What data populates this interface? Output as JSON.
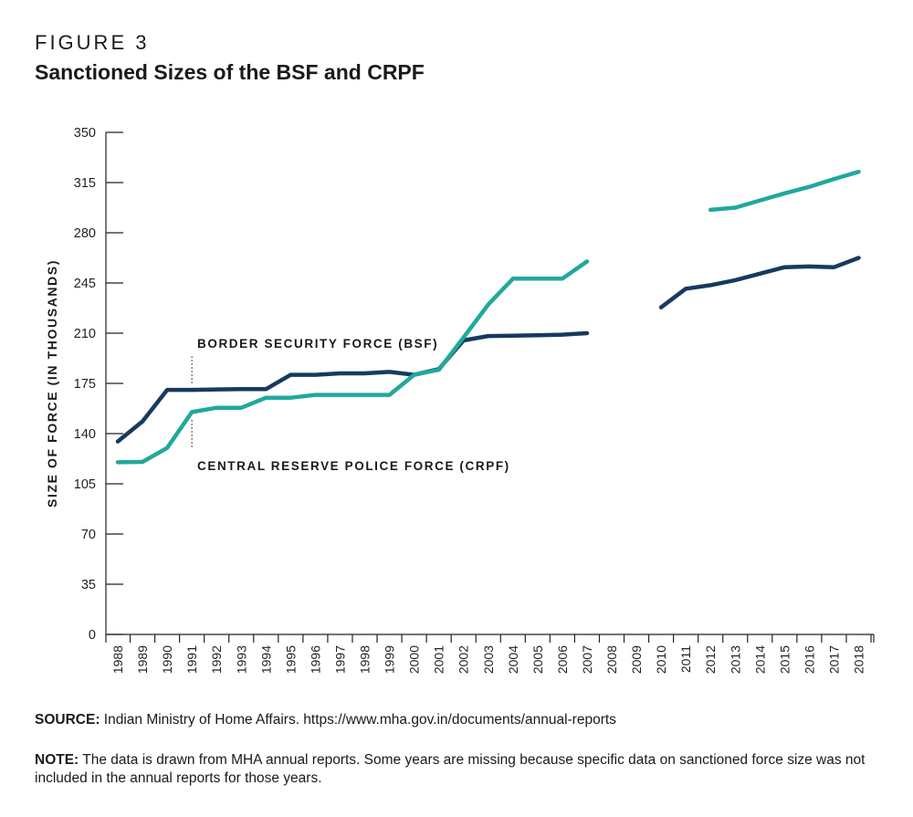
{
  "figure": {
    "label": "FIGURE 3",
    "title": "Sanctioned Sizes of the BSF and CRPF"
  },
  "chart_data": {
    "type": "line",
    "title": "Sanctioned Sizes of the BSF and CRPF",
    "xlabel": "",
    "ylabel": "SIZE OF FORCE (IN THOUSANDS)",
    "ylim": [
      0,
      350
    ],
    "yticks": [
      0,
      35,
      70,
      105,
      140,
      175,
      210,
      245,
      280,
      315,
      350
    ],
    "categories": [
      "1988",
      "1989",
      "1990",
      "1991",
      "1992",
      "1993",
      "1994",
      "1995",
      "1996",
      "1997",
      "1998",
      "1999",
      "2000",
      "2001",
      "2002",
      "2003",
      "2004",
      "2005",
      "2006",
      "2007",
      "2008",
      "2009",
      "2010",
      "2011",
      "2012",
      "2013",
      "2014",
      "2015",
      "2016",
      "2017",
      "2018"
    ],
    "grid": false,
    "series": [
      {
        "name": "BORDER SECURITY FORCE (BSF)",
        "color": "#173a5e",
        "values": [
          134.5,
          148.5,
          170.5,
          170.5,
          170.8,
          171,
          171,
          181,
          181,
          182,
          182,
          183,
          181,
          185,
          205,
          208,
          208.3,
          208.6,
          209,
          210,
          null,
          null,
          228,
          241,
          243.5,
          247,
          251.5,
          256,
          256.5,
          256,
          262.5
        ]
      },
      {
        "name": "CENTRAL RESERVE POLICE FORCE (CRPF)",
        "color": "#20a99b",
        "values": [
          120,
          120.3,
          130,
          155,
          158,
          158,
          165,
          165,
          167,
          167,
          167,
          167,
          181,
          184.5,
          207,
          230,
          248,
          248,
          248,
          260,
          null,
          null,
          null,
          null,
          296,
          297.5,
          302.5,
          307.5,
          312,
          317.5,
          322.5
        ]
      }
    ],
    "annotations": [
      {
        "text": "BORDER SECURITY FORCE (BSF)",
        "series": "BORDER SECURITY FORCE (BSF)"
      },
      {
        "text": "CENTRAL RESERVE POLICE FORCE (CRPF)",
        "series": "CENTRAL RESERVE POLICE FORCE (CRPF)"
      }
    ]
  },
  "footer": {
    "source_label": "SOURCE:",
    "source_text": " Indian Ministry of Home Affairs. https://www.mha.gov.in/documents/annual-reports",
    "note_label": "NOTE:",
    "note_text": " The data is drawn from MHA annual reports. Some years are missing because specific data on sanctioned force size was not included in the annual reports for those years."
  }
}
